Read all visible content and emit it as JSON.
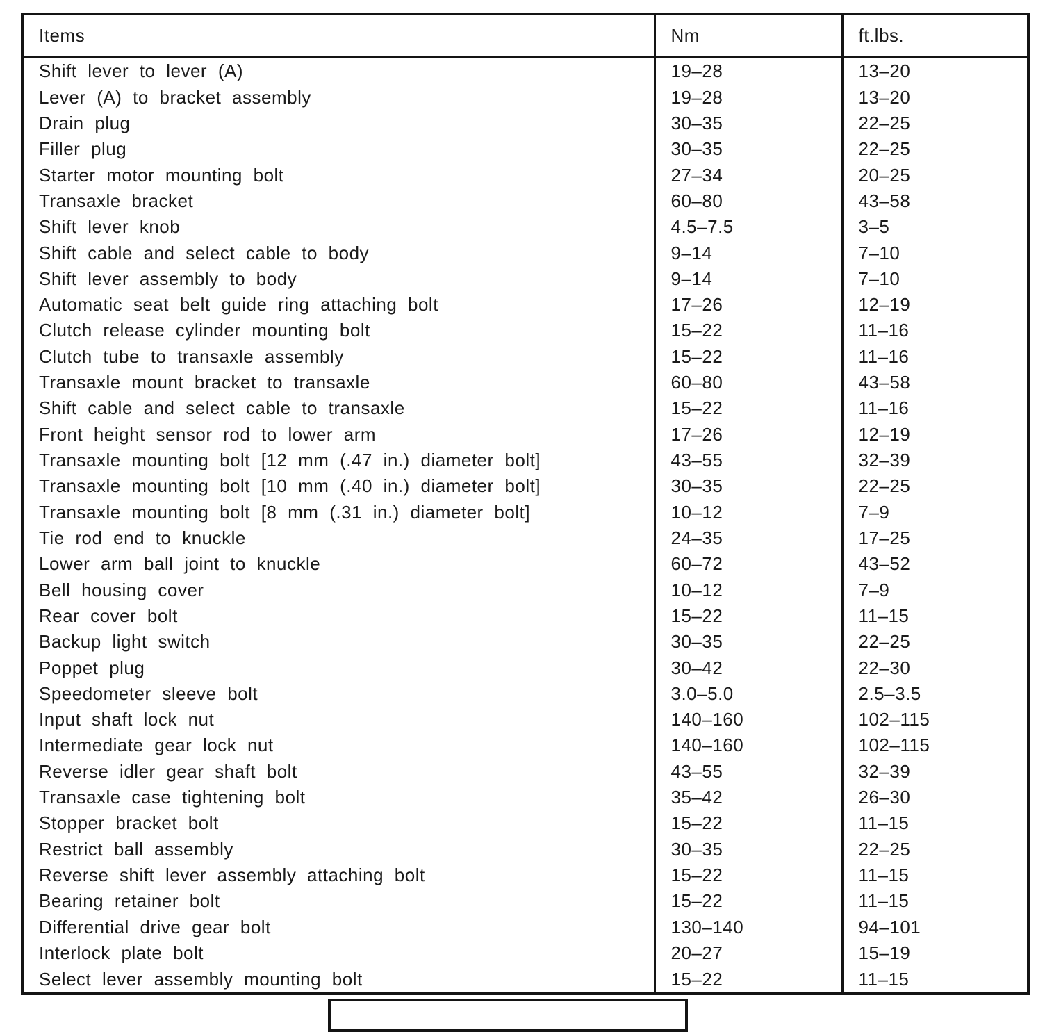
{
  "table": {
    "headers": {
      "items": "Items",
      "nm": "Nm",
      "ftlbs": "ft.lbs."
    },
    "rows": [
      {
        "item": "Shift lever to lever (A)",
        "nm": "19–28",
        "ftlbs": "13–20"
      },
      {
        "item": "Lever (A) to bracket assembly",
        "nm": "19–28",
        "ftlbs": "13–20"
      },
      {
        "item": "Drain plug",
        "nm": "30–35",
        "ftlbs": "22–25"
      },
      {
        "item": "Filler plug",
        "nm": "30–35",
        "ftlbs": "22–25"
      },
      {
        "item": "Starter motor mounting bolt",
        "nm": "27–34",
        "ftlbs": "20–25"
      },
      {
        "item": "Transaxle bracket",
        "nm": "60–80",
        "ftlbs": "43–58"
      },
      {
        "item": "Shift lever knob",
        "nm": "4.5–7.5",
        "ftlbs": "3–5"
      },
      {
        "item": "Shift cable and select cable to body",
        "nm": "9–14",
        "ftlbs": "7–10"
      },
      {
        "item": "Shift lever assembly to body",
        "nm": "9–14",
        "ftlbs": "7–10"
      },
      {
        "item": "Automatic seat belt guide ring attaching bolt",
        "nm": "17–26",
        "ftlbs": "12–19"
      },
      {
        "item": "Clutch release cylinder mounting bolt",
        "nm": "15–22",
        "ftlbs": "11–16"
      },
      {
        "item": "Clutch tube to transaxle assembly",
        "nm": "15–22",
        "ftlbs": "11–16"
      },
      {
        "item": "Transaxle mount bracket to transaxle",
        "nm": "60–80",
        "ftlbs": "43–58"
      },
      {
        "item": "Shift cable and select cable to transaxle",
        "nm": "15–22",
        "ftlbs": "11–16"
      },
      {
        "item": "Front height sensor rod to lower arm",
        "nm": "17–26",
        "ftlbs": "12–19"
      },
      {
        "item": "Transaxle mounting bolt [12 mm (.47 in.) diameter bolt]",
        "nm": "43–55",
        "ftlbs": "32–39"
      },
      {
        "item": "Transaxle mounting bolt [10 mm (.40 in.) diameter bolt]",
        "nm": "30–35",
        "ftlbs": "22–25"
      },
      {
        "item": "Transaxle mounting bolt [8 mm (.31 in.) diameter bolt]",
        "nm": "10–12",
        "ftlbs": "7–9"
      },
      {
        "item": "Tie rod end to knuckle",
        "nm": "24–35",
        "ftlbs": "17–25"
      },
      {
        "item": "Lower arm ball joint to knuckle",
        "nm": "60–72",
        "ftlbs": "43–52"
      },
      {
        "item": "Bell housing cover",
        "nm": "10–12",
        "ftlbs": "7–9"
      },
      {
        "item": "Rear cover bolt",
        "nm": "15–22",
        "ftlbs": "11–15"
      },
      {
        "item": "Backup light switch",
        "nm": "30–35",
        "ftlbs": "22–25"
      },
      {
        "item": "Poppet plug",
        "nm": "30–42",
        "ftlbs": "22–30"
      },
      {
        "item": "Speedometer sleeve bolt",
        "nm": "3.0–5.0",
        "ftlbs": "2.5–3.5"
      },
      {
        "item": "Input shaft lock nut",
        "nm": "140–160",
        "ftlbs": "102–115"
      },
      {
        "item": "Intermediate gear lock nut",
        "nm": "140–160",
        "ftlbs": "102–115"
      },
      {
        "item": "Reverse idler gear shaft bolt",
        "nm": "43–55",
        "ftlbs": "32–39"
      },
      {
        "item": "Transaxle case tightening bolt",
        "nm": "35–42",
        "ftlbs": "26–30"
      },
      {
        "item": "Stopper bracket bolt",
        "nm": "15–22",
        "ftlbs": "11–15"
      },
      {
        "item": "Restrict ball assembly",
        "nm": "30–35",
        "ftlbs": "22–25"
      },
      {
        "item": "Reverse shift lever assembly attaching bolt",
        "nm": "15–22",
        "ftlbs": "11–15"
      },
      {
        "item": "Bearing retainer bolt",
        "nm": "15–22",
        "ftlbs": "11–15"
      },
      {
        "item": "Differential drive gear bolt",
        "nm": "130–140",
        "ftlbs": "94–101"
      },
      {
        "item": "Interlock plate bolt",
        "nm": "20–27",
        "ftlbs": "15–19"
      },
      {
        "item": "Select lever assembly mounting bolt",
        "nm": "15–22",
        "ftlbs": "11–15"
      }
    ]
  }
}
